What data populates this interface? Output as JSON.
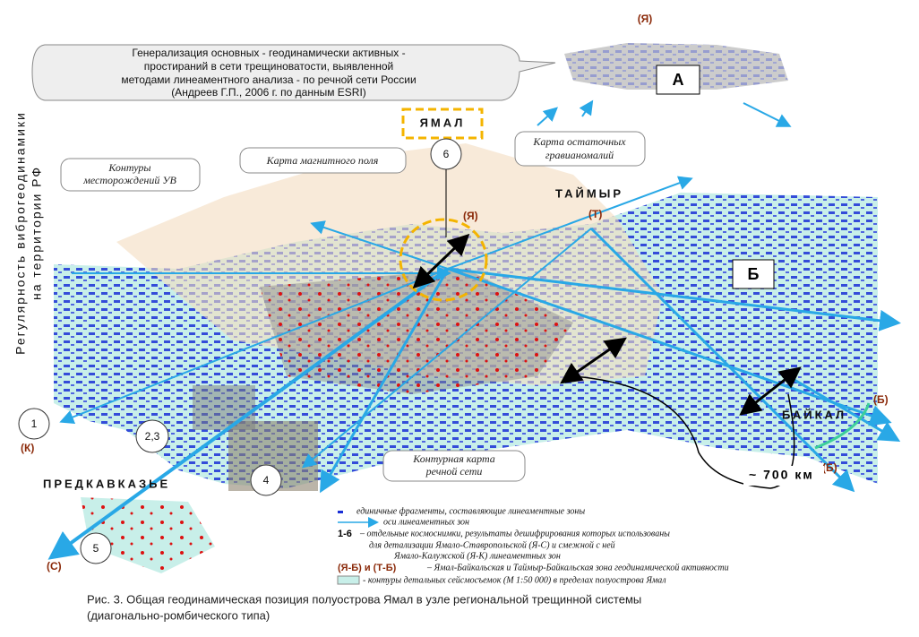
{
  "side_label": [
    "Регулярность виброгеодинамики",
    "на территории РФ"
  ],
  "callout": [
    "Генерализация основных  - геодинамически активных  -",
    "простираний в сети трещиноватости, выявленной",
    "методами линеаментного анализа - по речной сети России",
    "(Андреев Г.П., 2006 г. по данным ESRI)"
  ],
  "inset_code": "(Я)",
  "inset_label": "А",
  "region_label": "Б",
  "yamal": "ЯМАЛ",
  "taymyr": "ТАЙМЫР",
  "baikal": "БАЙКАЛ",
  "predkavkazye": "ПРЕДКАВКАЗЬЕ",
  "codes": {
    "ya": "(Я)",
    "t": "(Т)",
    "b1": "(Б)",
    "b2": "(Б)",
    "k": "(К)",
    "s": "(С)"
  },
  "notes": {
    "gravity": [
      "Карта  остаточных",
      "гравианомалий"
    ],
    "magnetic": "Карта магнитного поля",
    "deposits": [
      "Контуры",
      "месторождений УВ"
    ],
    "river": [
      "Контурная карта",
      "речной сети"
    ]
  },
  "distance": "~ 700 км",
  "scenes": [
    "1",
    "2,3",
    "4",
    "5",
    "6"
  ],
  "legend": [
    {
      "text": "единичные фрагменты, составляющие линеаментные зоны"
    },
    {
      "text": "оси линеаментных зон"
    },
    {
      "key": "1-6",
      "text": "– отдельные космоснимки, результаты дешифрирования  которых использованы",
      "more": [
        "для детализации Ямало-Ставропольской (Я-С) и смежной с ней",
        "Ямало-Калужской (Я-К) линеаментных зон"
      ]
    },
    {
      "key": "(Я-Б)  и  (Т-Б)",
      "text": "– Ямал-Байкальская и Таймыр-Байкальская зона  геодинамической активности"
    },
    {
      "text": "-  контуры детальных сейсмосъемок  (М 1:50 000) в пределах полуострова Ямал"
    }
  ],
  "caption": [
    "Рис. 3. Общая геодинамическая позиция полуострова  Ямал в узле региональной трещинной системы",
    "(диагонально-ромбического типа)"
  ]
}
